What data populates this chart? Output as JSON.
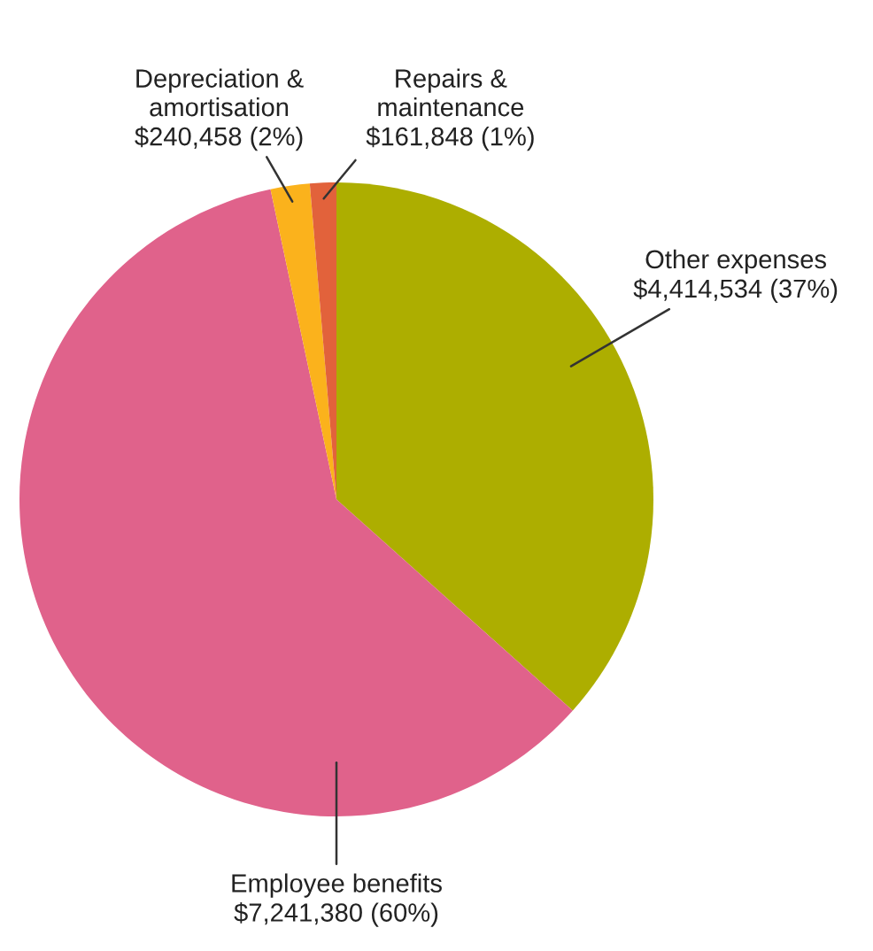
{
  "chart_data": {
    "type": "pie",
    "categories": [
      "Other expenses",
      "Employee benefits",
      "Depreciation &\namortisation",
      "Repairs &\nmaintenance"
    ],
    "values": [
      4414534,
      7241380,
      240458,
      161848
    ],
    "colors": [
      "#adae00",
      "#e0628b",
      "#fbb21c",
      "#e2623b"
    ],
    "value_labels": [
      "$4,414,534 (37%)",
      "$7,241,380 (60%)",
      "$240,458 (2%)",
      "$161,848 (1%)"
    ]
  }
}
